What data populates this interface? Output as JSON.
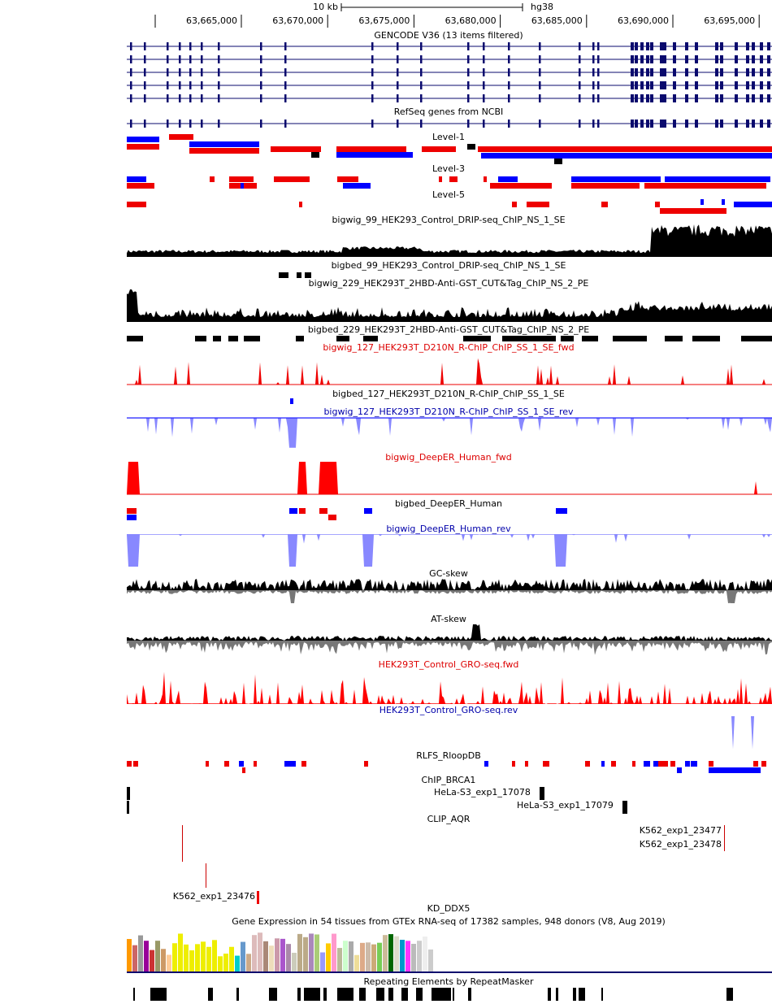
{
  "ruler": {
    "scale": "10 kb",
    "assembly": "hg38",
    "ticks": [
      "63,665,000",
      "63,670,000",
      "63,675,000",
      "63,680,000",
      "63,685,000",
      "63,690,000",
      "63,695,000"
    ]
  },
  "tracks": [
    {
      "label": "GENCODE V36 (13 items filtered)",
      "color": "#000000"
    },
    {
      "label": "RefSeq genes from NCBI",
      "color": "#000000"
    },
    {
      "label": "Level-1",
      "color": "#000000"
    },
    {
      "label": "Level-3",
      "color": "#000000"
    },
    {
      "label": "Level-5",
      "color": "#000000"
    },
    {
      "label": "bigwig_99_HEK293_Control_DRIP-seq_ChIP_NS_1_SE",
      "color": "#000000"
    },
    {
      "label": "bigbed_99_HEK293_Control_DRIP-seq_ChIP_NS_1_SE",
      "color": "#000000"
    },
    {
      "label": "bigwig_229_HEK293T_2HBD-Anti-GST_CUT&Tag_ChIP_NS_2_PE",
      "color": "#000000"
    },
    {
      "label": "bigbed_229_HEK293T_2HBD-Anti-GST_CUT&Tag_ChIP_NS_2_PE",
      "color": "#000000"
    },
    {
      "label": "bigwig_127_HEK293T_D210N_R-ChIP_ChIP_SS_1_SE_fwd",
      "color": "#dd0000"
    },
    {
      "label": "bigbed_127_HEK293T_D210N_R-ChIP_ChIP_SS_1_SE",
      "color": "#000000"
    },
    {
      "label": "bigwig_127_HEK293T_D210N_R-ChIP_ChIP_SS_1_SE_rev",
      "color": "#0000aa"
    },
    {
      "label": "bigwig_DeepER_Human_fwd",
      "color": "#dd0000"
    },
    {
      "label": "bigbed_DeepER_Human",
      "color": "#000000"
    },
    {
      "label": "bigwig_DeepER_Human_rev",
      "color": "#0000aa"
    },
    {
      "label": "GC-skew",
      "color": "#000000"
    },
    {
      "label": "AT-skew",
      "color": "#000000"
    },
    {
      "label": "HEK293T_Control_GRO-seq.fwd",
      "color": "#dd0000"
    },
    {
      "label": "HEK293T_Control_GRO-seq.rev",
      "color": "#0000aa"
    },
    {
      "label": "RLFS_RloopDB",
      "color": "#000000"
    },
    {
      "label": "ChIP_BRCA1",
      "color": "#000000"
    },
    {
      "label": "CLIP_AQR",
      "color": "#000000"
    },
    {
      "label": "KD_DDX5",
      "color": "#000000"
    },
    {
      "label": "Gene Expression in 54 tissues from GTEx RNA-seq of 17382 samples, 948 donors (V8, Aug 2019)",
      "color": "#000000"
    },
    {
      "label": "Repeating Elements by RepeatMasker",
      "color": "#000000"
    }
  ],
  "item_labels": [
    "HeLa-S3_exp1_17078",
    "HeLa-S3_exp1_17079",
    "K562_exp1_23477",
    "K562_exp1_23478",
    "K562_exp1_23476"
  ]
}
